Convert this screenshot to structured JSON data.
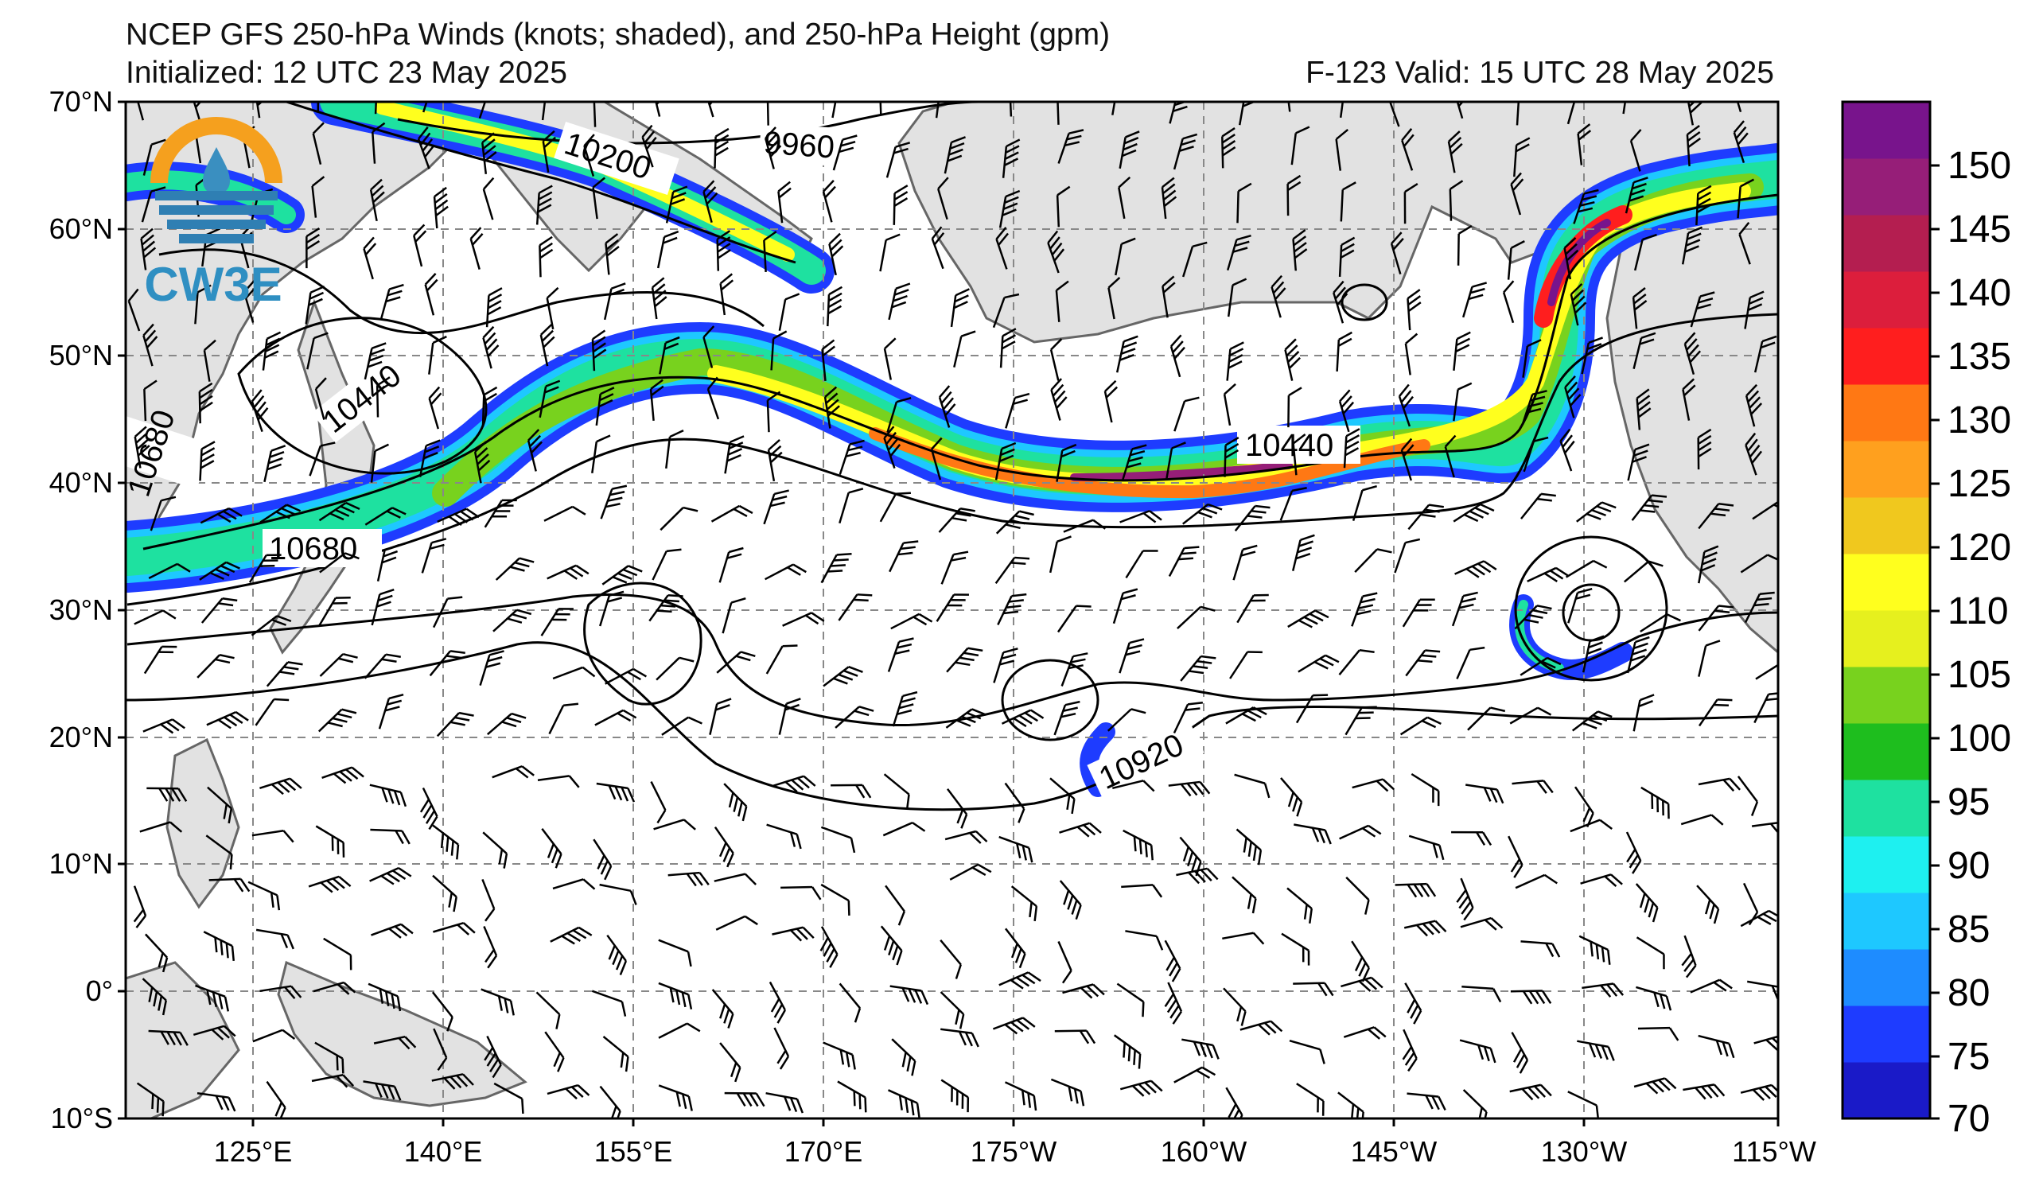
{
  "header": {
    "title": "NCEP GFS 250-hPa Winds (knots; shaded), and 250-hPa Height (gpm)",
    "init": "Initialized: 12 UTC 23 May 2025",
    "valid": "F-123  Valid: 15 UTC 28 May 2025"
  },
  "logo": {
    "text": "CW3E"
  },
  "map": {
    "lat_labels": [
      "70°N",
      "60°N",
      "50°N",
      "40°N",
      "30°N",
      "20°N",
      "10°N",
      "0°",
      "10°S"
    ],
    "lon_labels": [
      "125°E",
      "140°E",
      "155°E",
      "170°E",
      "175°W",
      "160°W",
      "145°W",
      "130°W",
      "115°W"
    ],
    "contour_labels": [
      "9960",
      "10200",
      "10440",
      "10680",
      "10680",
      "10440",
      "10920"
    ]
  },
  "colorbar": {
    "ticks": [
      "150",
      "145",
      "140",
      "135",
      "130",
      "125",
      "120",
      "110",
      "105",
      "100",
      "95",
      "90",
      "85",
      "80",
      "75",
      "70"
    ],
    "colors": [
      "#1a1ac8",
      "#1e3cff",
      "#1e8cff",
      "#1ec8ff",
      "#1ef0f0",
      "#1ee1a0",
      "#1ebe1e",
      "#78d21e",
      "#e6f01e",
      "#ffff1e",
      "#f0c81e",
      "#ffa01e",
      "#ff7814",
      "#ff1e1e",
      "#dc1e3c",
      "#b41e50",
      "#961e78",
      "#78148c"
    ]
  }
}
